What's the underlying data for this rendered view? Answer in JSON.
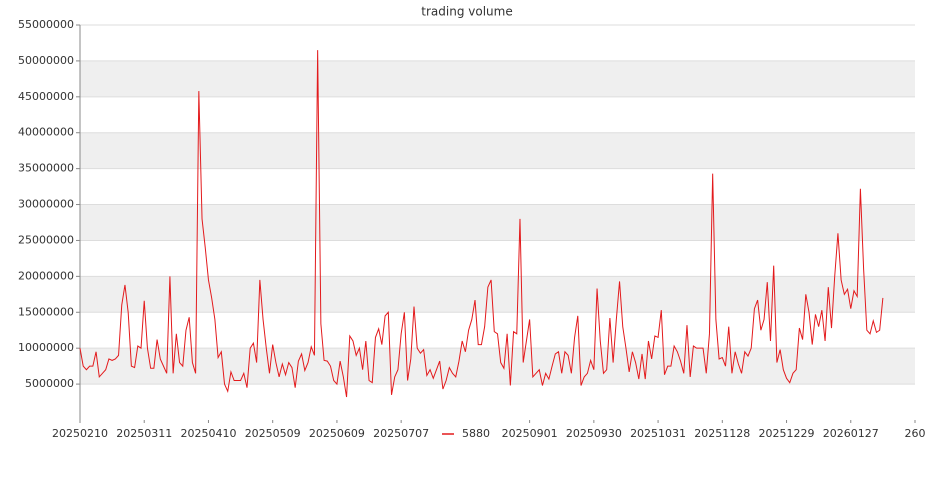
{
  "chart_data": {
    "type": "line",
    "title": "trading volume",
    "series": [
      {
        "name": "5880",
        "color": "#e31a1c",
        "values": [
          10000000,
          7500000,
          7000000,
          7500000,
          7500000,
          9500000,
          6000000,
          6500000,
          7000000,
          8500000,
          8300000,
          8500000,
          9000000,
          16000000,
          18800000,
          15000000,
          7500000,
          7300000,
          10300000,
          10000000,
          16600000,
          10000000,
          7200000,
          7200000,
          11200000,
          8500000,
          7500000,
          6500000,
          20000000,
          6500000,
          12000000,
          8000000,
          7500000,
          12500000,
          14300000,
          8000000,
          6500000,
          45800000,
          28000000,
          24000000,
          19500000,
          17000000,
          14000000,
          8700000,
          9500000,
          5000000,
          4000000,
          6700000,
          5500000,
          5500000,
          5500000,
          6500000,
          4500000,
          10000000,
          10700000,
          8000000,
          19500000,
          14000000,
          10000000,
          6500000,
          10500000,
          8000000,
          6000000,
          7800000,
          6300000,
          8000000,
          7300000,
          4500000,
          8200000,
          9200000,
          6900000,
          8000000,
          10200000,
          9000000,
          51500000,
          13400000,
          8300000,
          8200000,
          7500000,
          5500000,
          5000000,
          8200000,
          6000000,
          3200000,
          11700000,
          11000000,
          9000000,
          10000000,
          7000000,
          11000000,
          5500000,
          5200000,
          11500000,
          12700000,
          10500000,
          14500000,
          15000000,
          3500000,
          6000000,
          7000000,
          12000000,
          15000000,
          5500000,
          8500000,
          15800000,
          10000000,
          9300000,
          9800000,
          6200000,
          7000000,
          5800000,
          7000000,
          8200000,
          4300000,
          5500000,
          7300000,
          6500000,
          6000000,
          8200000,
          11000000,
          9500000,
          12500000,
          14000000,
          16700000,
          10500000,
          10500000,
          13000000,
          18500000,
          19500000,
          12300000,
          12000000,
          8000000,
          7200000,
          12000000,
          4800000,
          12300000,
          12000000,
          28000000,
          8000000,
          11000000,
          14000000,
          6000000,
          6500000,
          7000000,
          4800000,
          6500000,
          5700000,
          7500000,
          9200000,
          9500000,
          6500000,
          9500000,
          9000000,
          6500000,
          11500000,
          14500000,
          4800000,
          6000000,
          6500000,
          8300000,
          7000000,
          18300000,
          11000000,
          6500000,
          7000000,
          14200000,
          8000000,
          14000000,
          19300000,
          13000000,
          10000000,
          6700000,
          9500000,
          8000000,
          5700000,
          9200000,
          5700000,
          11000000,
          8500000,
          11700000,
          11500000,
          15300000,
          6300000,
          7500000,
          7500000,
          10300000,
          9500000,
          8200000,
          6500000,
          13200000,
          6000000,
          10300000,
          10000000,
          10000000,
          10000000,
          6500000,
          12000000,
          34300000,
          14000000,
          8500000,
          8700000,
          7500000,
          13000000,
          6500000,
          9500000,
          7800000,
          6500000,
          9500000,
          8900000,
          10000000,
          15500000,
          16700000,
          12500000,
          14000000,
          19200000,
          11000000,
          21500000,
          8000000,
          9800000,
          7000000,
          5800000,
          5200000,
          6500000,
          7000000,
          12800000,
          11200000,
          17500000,
          15000000,
          10500000,
          14700000,
          13000000,
          15300000,
          11000000,
          18500000,
          12800000,
          20000000,
          26000000,
          19500000,
          17500000,
          18200000,
          15500000,
          18000000,
          17200000,
          32200000,
          21000000,
          12500000,
          12000000,
          13800000,
          12200000,
          12500000,
          17000000
        ]
      }
    ],
    "xlim": [
      0,
      260
    ],
    "xticks": [
      {
        "value": 0,
        "label": "20250210"
      },
      {
        "value": 20,
        "label": "20250311"
      },
      {
        "value": 40,
        "label": "20250410"
      },
      {
        "value": 60,
        "label": "20250509"
      },
      {
        "value": 80,
        "label": "20250609"
      },
      {
        "value": 100,
        "label": "20250707"
      },
      {
        "value": 140,
        "label": "20250901"
      },
      {
        "value": 160,
        "label": "20250930"
      },
      {
        "value": 180,
        "label": "20251031"
      },
      {
        "value": 200,
        "label": "20251128"
      },
      {
        "value": 220,
        "label": "20251229"
      },
      {
        "value": 240,
        "label": "20260127"
      },
      {
        "value": 260,
        "label": "260"
      }
    ],
    "ylim": [
      0,
      55000000
    ],
    "yticks": [
      5000000,
      10000000,
      15000000,
      20000000,
      25000000,
      30000000,
      35000000,
      40000000,
      45000000,
      50000000,
      55000000
    ],
    "grid": true,
    "legend": "bottom"
  }
}
